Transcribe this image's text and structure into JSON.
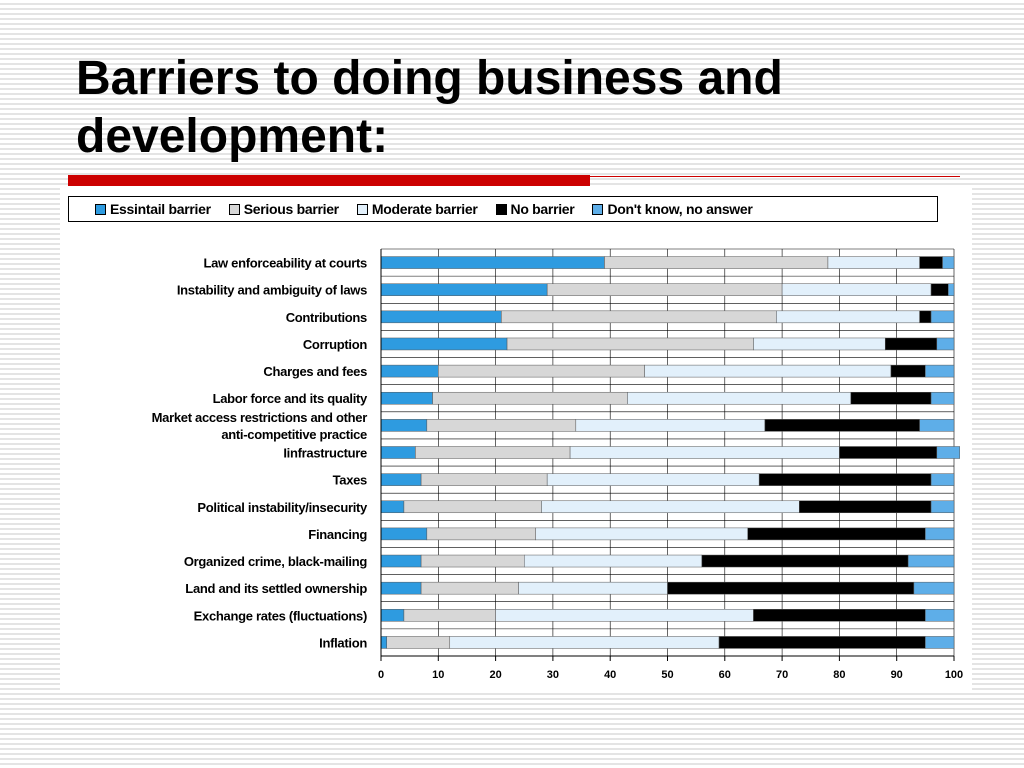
{
  "title": "Barriers to doing business and development:",
  "chart_data": {
    "type": "bar",
    "orientation": "horizontal",
    "stacked": true,
    "xlim": [
      0,
      100
    ],
    "ticks": [
      "0",
      "10",
      "20",
      "30",
      "40",
      "50",
      "60",
      "70",
      "80",
      "90",
      "100"
    ],
    "grid": true,
    "legend_position": "top",
    "categories": [
      [
        "Law enforceability at courts"
      ],
      [
        "Instability and ambiguity of laws"
      ],
      [
        "Contributions"
      ],
      [
        "Corruption"
      ],
      [
        "Charges and fees"
      ],
      [
        "Labor force and its quality"
      ],
      [
        "Market access restrictions and other",
        "anti-competitive practice"
      ],
      [
        "Iinfrastructure"
      ],
      [
        "Taxes"
      ],
      [
        "Political instability/insecurity"
      ],
      [
        "Financing"
      ],
      [
        "Organized crime, black-mailing"
      ],
      [
        "Land and its settled ownership"
      ],
      [
        "Exchange rates (fluctuations)"
      ],
      [
        "Inflation"
      ]
    ],
    "series": [
      {
        "name": "Essintail barrier",
        "color": "#2e9be0",
        "values": [
          39,
          29,
          21,
          22,
          10,
          9,
          8,
          6,
          7,
          4,
          8,
          7,
          7,
          4,
          1
        ]
      },
      {
        "name": "Serious barrier",
        "color": "#d7d7d7",
        "values": [
          39,
          41,
          48,
          43,
          36,
          34,
          26,
          27,
          22,
          24,
          19,
          18,
          17,
          16,
          11
        ]
      },
      {
        "name": "Moderate barrier",
        "color": "#e2f0fb",
        "values": [
          16,
          26,
          25,
          23,
          43,
          39,
          33,
          47,
          37,
          45,
          37,
          31,
          26,
          45,
          47
        ]
      },
      {
        "name": "No barrier",
        "color": "#000000",
        "values": [
          4,
          3,
          2,
          9,
          6,
          14,
          27,
          17,
          30,
          23,
          31,
          36,
          43,
          30,
          36
        ]
      },
      {
        "name": "Don't know, no answer",
        "color": "#5eaee8",
        "values": [
          2,
          1,
          4,
          3,
          5,
          4,
          6,
          4,
          4,
          4,
          5,
          8,
          7,
          5,
          5
        ]
      }
    ]
  }
}
